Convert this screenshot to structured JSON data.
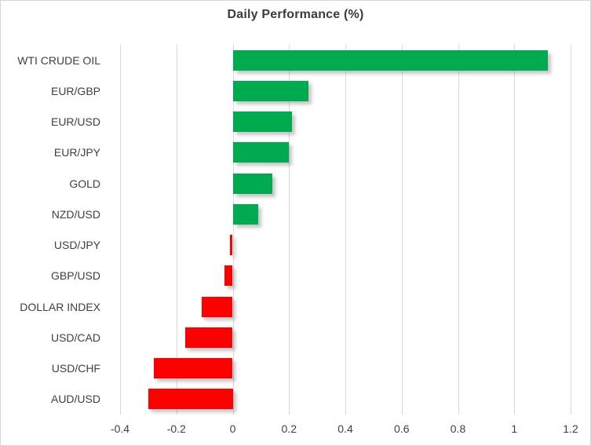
{
  "chart_data": {
    "type": "bar",
    "orientation": "horizontal",
    "title": "Daily Performance (%)",
    "categories": [
      "WTI CRUDE OIL",
      "EUR/GBP",
      "EUR/USD",
      "EUR/JPY",
      "GOLD",
      "NZD/USD",
      "USD/JPY",
      "GBP/USD",
      "DOLLAR INDEX",
      "USD/CAD",
      "USD/CHF",
      "AUD/USD"
    ],
    "values": [
      1.12,
      0.27,
      0.21,
      0.2,
      0.14,
      0.09,
      -0.01,
      -0.03,
      -0.11,
      -0.17,
      -0.28,
      -0.3
    ],
    "xlabel": "",
    "ylabel": "",
    "xlim": [
      -0.4,
      1.2
    ],
    "xtick_labels": [
      "-0.4",
      "-0.2",
      "0",
      "0.2",
      "0.4",
      "0.6",
      "0.8",
      "1",
      "1.2"
    ],
    "grid": true,
    "legend": false,
    "colors": {
      "positive": "#00AB50",
      "negative": "#FF0000",
      "gridline": "#D9D9D9",
      "text": "#3F3F3F",
      "border": "#D6D6D6"
    }
  }
}
